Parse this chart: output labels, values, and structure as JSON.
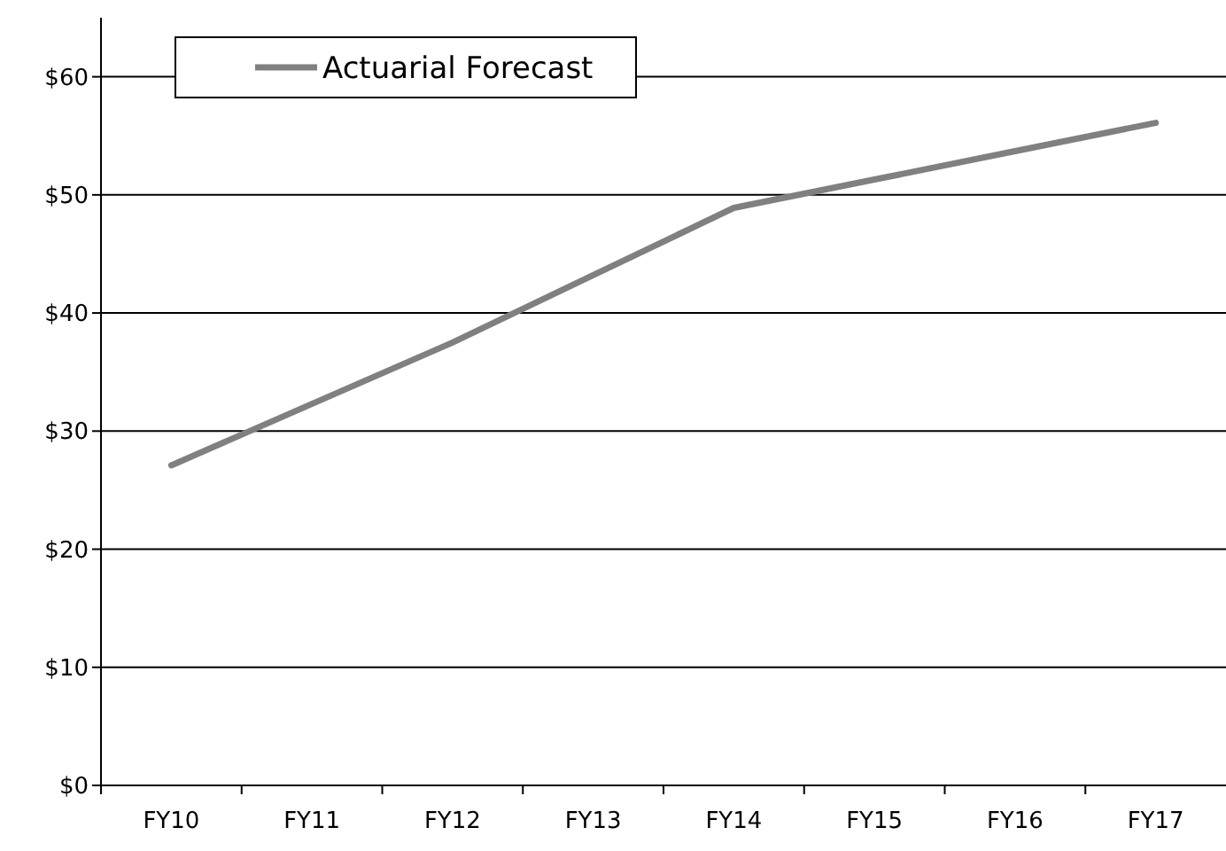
{
  "chart_data": {
    "type": "line",
    "categories": [
      "FY10",
      "FY11",
      "FY12",
      "FY13",
      "FY14",
      "FY15",
      "FY16",
      "FY17"
    ],
    "series": [
      {
        "name": "Actuarial Forecast",
        "color": "#808080",
        "values": [
          27.1,
          32.3,
          37.5,
          43.2,
          48.9,
          51.3,
          53.7,
          56.1
        ]
      }
    ],
    "ylim": [
      0,
      65
    ],
    "yticks": [
      {
        "value": 0,
        "label": "$0"
      },
      {
        "value": 10,
        "label": "$10"
      },
      {
        "value": 20,
        "label": "$20"
      },
      {
        "value": 30,
        "label": "$30"
      },
      {
        "value": 40,
        "label": "$40"
      },
      {
        "value": 50,
        "label": "$50"
      },
      {
        "value": 60,
        "label": "$60"
      }
    ],
    "grid": "y",
    "legend": "top left",
    "marker": "none",
    "line_style": "solid"
  }
}
